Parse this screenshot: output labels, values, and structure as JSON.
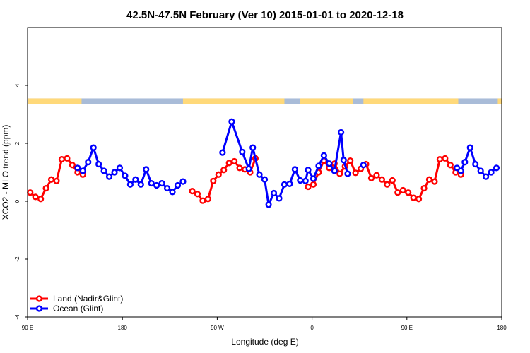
{
  "chart_data": {
    "type": "line",
    "title": "42.5N-47.5N February (Ver 10)   2015-01-01 to 2020-12-18",
    "xlabel": "Longitude (deg E)",
    "ylabel": "XCO2 - MLO trend (ppm)",
    "xlim": [
      90,
      450
    ],
    "ylim": [
      -4,
      6
    ],
    "x_ticks": [
      {
        "value": 90,
        "label": "90 E"
      },
      {
        "value": 162,
        "label": "180"
      },
      {
        "value": 234,
        "label": "90 W"
      },
      {
        "value": 306,
        "label": "0"
      },
      {
        "value": 378,
        "label": "90 E"
      },
      {
        "value": 450,
        "label": "180"
      }
    ],
    "y_ticks": [
      {
        "value": -4,
        "label": "-4"
      },
      {
        "value": -2,
        "label": "-2"
      },
      {
        "value": 0,
        "label": "0"
      },
      {
        "value": 2,
        "label": "2"
      },
      {
        "value": 4,
        "label": "4"
      }
    ],
    "grid": false,
    "legend_position": "bottom-left",
    "land_ocean_band": {
      "y_range": [
        3.35,
        3.55
      ],
      "land_color": "#ffd97a",
      "ocean_color": "#a9bcd8",
      "land_x_ranges": [
        [
          90,
          131
        ],
        [
          208,
          285
        ],
        [
          297,
          337
        ],
        [
          345,
          417
        ],
        [
          447,
          450
        ]
      ]
    },
    "series": [
      {
        "name": "Land (Nadir&Glint)",
        "color": "#ff0000",
        "segments": [
          [
            [
              92,
              0.3
            ],
            [
              96,
              0.15
            ],
            [
              100,
              0.08
            ],
            [
              104,
              0.45
            ],
            [
              108,
              0.75
            ],
            [
              112,
              0.7
            ],
            [
              116,
              1.45
            ],
            [
              120,
              1.48
            ],
            [
              124,
              1.25
            ],
            [
              128,
              1.0
            ],
            [
              132,
              0.92
            ]
          ],
          [
            [
              215,
              0.35
            ],
            [
              219,
              0.25
            ],
            [
              223,
              0.02
            ],
            [
              227,
              0.08
            ],
            [
              231,
              0.7
            ],
            [
              235,
              0.92
            ],
            [
              239,
              1.08
            ],
            [
              243,
              1.32
            ],
            [
              247,
              1.38
            ],
            [
              251,
              1.15
            ],
            [
              255,
              1.1
            ],
            [
              259,
              1.0
            ],
            [
              263,
              1.48
            ]
          ],
          [
            [
              303,
              0.5
            ],
            [
              307,
              0.58
            ],
            [
              311,
              1.0
            ],
            [
              315,
              1.4
            ],
            [
              319,
              1.15
            ],
            [
              323,
              1.3
            ],
            [
              327,
              0.95
            ],
            [
              331,
              1.2
            ],
            [
              335,
              1.4
            ],
            [
              339,
              0.98
            ],
            [
              343,
              1.12
            ],
            [
              347,
              1.28
            ],
            [
              351,
              0.8
            ],
            [
              355,
              0.9
            ],
            [
              359,
              0.75
            ],
            [
              363,
              0.58
            ],
            [
              367,
              0.72
            ],
            [
              371,
              0.3
            ],
            [
              375,
              0.38
            ],
            [
              379,
              0.3
            ],
            [
              383,
              0.12
            ],
            [
              387,
              0.08
            ],
            [
              391,
              0.45
            ],
            [
              395,
              0.75
            ],
            [
              399,
              0.68
            ],
            [
              403,
              1.45
            ],
            [
              407,
              1.48
            ],
            [
              411,
              1.25
            ],
            [
              415,
              1.0
            ],
            [
              419,
              0.92
            ]
          ]
        ]
      },
      {
        "name": "Ocean (Glint)",
        "color": "#0000ff",
        "segments": [
          [
            [
              128,
              1.15
            ],
            [
              132,
              1.05
            ],
            [
              136,
              1.35
            ],
            [
              140,
              1.85
            ],
            [
              144,
              1.28
            ],
            [
              148,
              1.05
            ],
            [
              152,
              0.85
            ],
            [
              156,
              1.0
            ],
            [
              160,
              1.15
            ],
            [
              164,
              0.88
            ],
            [
              168,
              0.58
            ],
            [
              172,
              0.75
            ],
            [
              176,
              0.58
            ],
            [
              180,
              1.1
            ],
            [
              184,
              0.62
            ],
            [
              188,
              0.55
            ],
            [
              192,
              0.62
            ],
            [
              196,
              0.45
            ],
            [
              200,
              0.32
            ],
            [
              204,
              0.55
            ],
            [
              208,
              0.68
            ]
          ],
          [
            [
              238,
              1.68
            ],
            [
              245,
              2.75
            ],
            [
              253,
              1.7
            ],
            [
              258,
              1.12
            ],
            [
              261,
              1.85
            ],
            [
              266,
              0.92
            ],
            [
              270,
              0.75
            ],
            [
              273,
              -0.12
            ],
            [
              277,
              0.28
            ],
            [
              281,
              0.1
            ],
            [
              285,
              0.58
            ],
            [
              289,
              0.6
            ],
            [
              293,
              1.1
            ],
            [
              297,
              0.72
            ],
            [
              301,
              0.7
            ],
            [
              303,
              1.08
            ],
            [
              307,
              0.78
            ],
            [
              311,
              1.22
            ],
            [
              315,
              1.58
            ],
            [
              319,
              1.3
            ],
            [
              323,
              1.05
            ],
            [
              328,
              2.38
            ],
            [
              330,
              1.42
            ],
            [
              333,
              0.95
            ]
          ],
          [
            [
              345,
              1.25
            ]
          ],
          [
            [
              416,
              1.15
            ],
            [
              419,
              1.05
            ],
            [
              422,
              1.35
            ],
            [
              426,
              1.85
            ],
            [
              430,
              1.28
            ],
            [
              434,
              1.05
            ],
            [
              438,
              0.85
            ],
            [
              442,
              1.0
            ],
            [
              446,
              1.15
            ]
          ]
        ]
      }
    ]
  }
}
